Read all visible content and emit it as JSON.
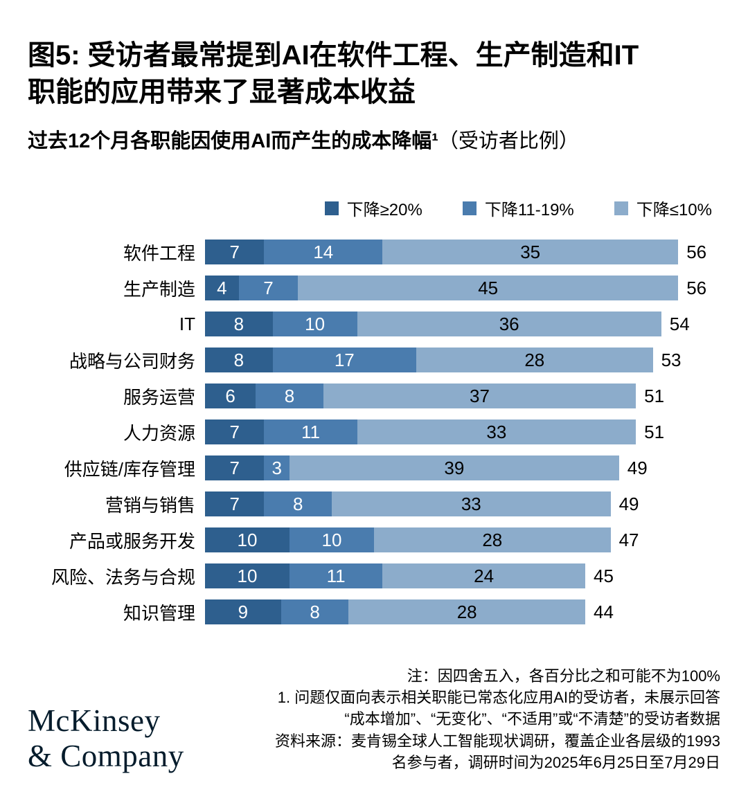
{
  "figure": {
    "title_line1": "图5: 受访者最常提到AI在软件工程、生产制造和IT",
    "title_line2": "职能的应用带来了显著成本收益",
    "subtitle_bold": "过去12个月各职能因使用AI而产生的成本降幅¹",
    "subtitle_regular": "（受访者比例）"
  },
  "legend": [
    {
      "label": "下降≥20%",
      "color": "#2E5F8E"
    },
    {
      "label": "下降11-19%",
      "color": "#4A7CAE"
    },
    {
      "label": "下降≤10%",
      "color": "#8CACCB"
    }
  ],
  "chart_data": {
    "type": "bar",
    "orientation": "horizontal",
    "stacked": true,
    "xlim": [
      0,
      60
    ],
    "grid": false,
    "legend_position": "top",
    "categories": [
      "软件工程",
      "生产制造",
      "IT",
      "战略与公司财务",
      "服务运营",
      "人力资源",
      "供应链/库存管理",
      "营销与销售",
      "产品或服务开发",
      "风险、法务与合规",
      "知识管理"
    ],
    "series": [
      {
        "name": "下降≥20%",
        "color": "#2E5F8E",
        "values": [
          7,
          4,
          8,
          8,
          6,
          7,
          7,
          7,
          10,
          10,
          9
        ]
      },
      {
        "name": "下降11-19%",
        "color": "#4A7CAE",
        "values": [
          14,
          7,
          10,
          17,
          8,
          11,
          3,
          8,
          10,
          11,
          8
        ]
      },
      {
        "name": "下降≤10%",
        "color": "#8CACCB",
        "values": [
          35,
          45,
          36,
          28,
          37,
          33,
          39,
          33,
          28,
          24,
          28
        ]
      }
    ],
    "totals": [
      56,
      56,
      54,
      53,
      51,
      51,
      49,
      49,
      47,
      45,
      44
    ]
  },
  "notes": [
    "注：因四舍五入，各百分比之和可能不为100%",
    "1.   问题仅面向表示相关职能已常态化应用AI的受访者，未展示回答",
    "“成本增加”、“无变化”、“不适用”或“不清楚”的受访者数据",
    "资料来源：麦肯锡全球人工智能现状调研，覆盖企业各层级的1993",
    "名参与者，调研时间为2025年6月25日至7月29日"
  ],
  "logo": {
    "line1": "McKinsey",
    "line2": "& Company"
  }
}
